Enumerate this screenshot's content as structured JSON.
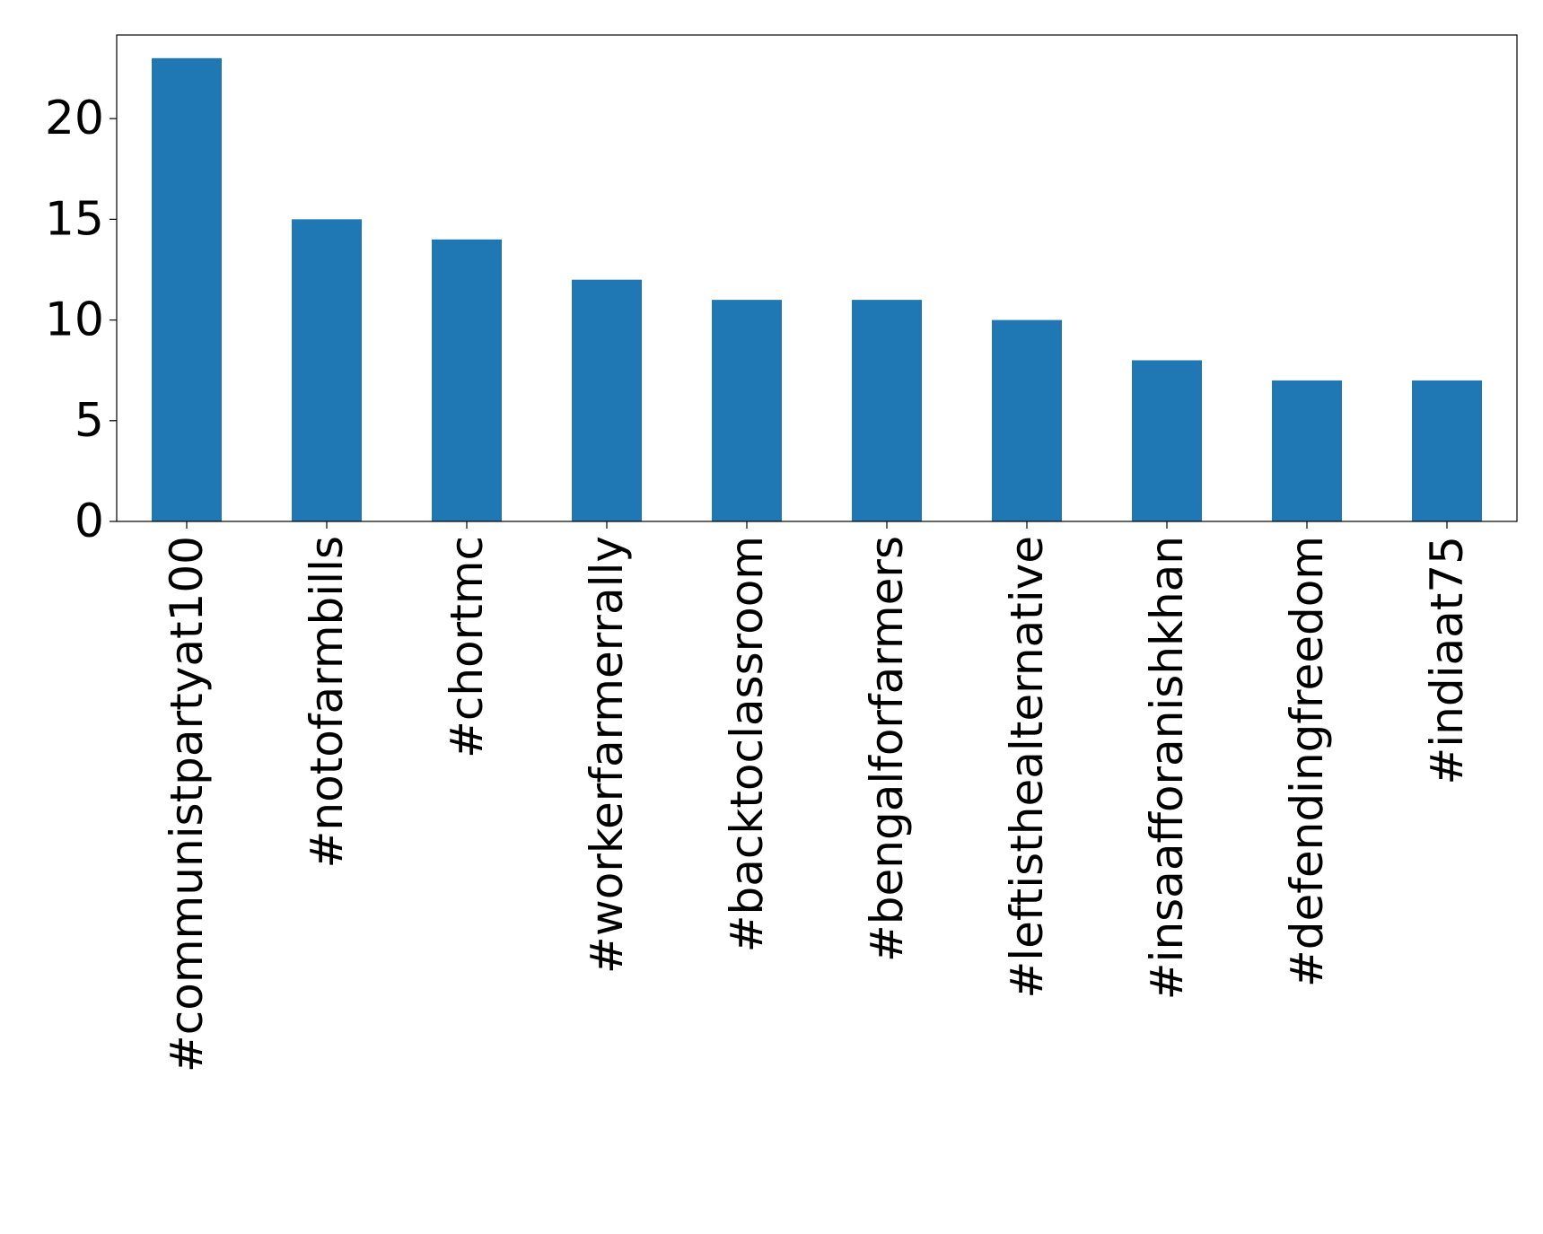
{
  "chart_data": {
    "type": "bar",
    "title": "",
    "xlabel": "",
    "ylabel": "",
    "categories": [
      "#communistpartyat100",
      "#notofarmbills",
      "#chortmc",
      "#workerfarmerrally",
      "#backtoclassroom",
      "#bengalforfarmers",
      "#leftisthealternative",
      "#insaafforanishkhan",
      "#defendingfreedom",
      "#indiaat75"
    ],
    "values": [
      23,
      15,
      14,
      12,
      11,
      11,
      10,
      8,
      7,
      7
    ],
    "ylim": [
      0,
      24.15
    ],
    "yticks": [
      0,
      5,
      10,
      15,
      20
    ],
    "grid": false,
    "legend": "none",
    "bar_color": "#1f77b4"
  }
}
